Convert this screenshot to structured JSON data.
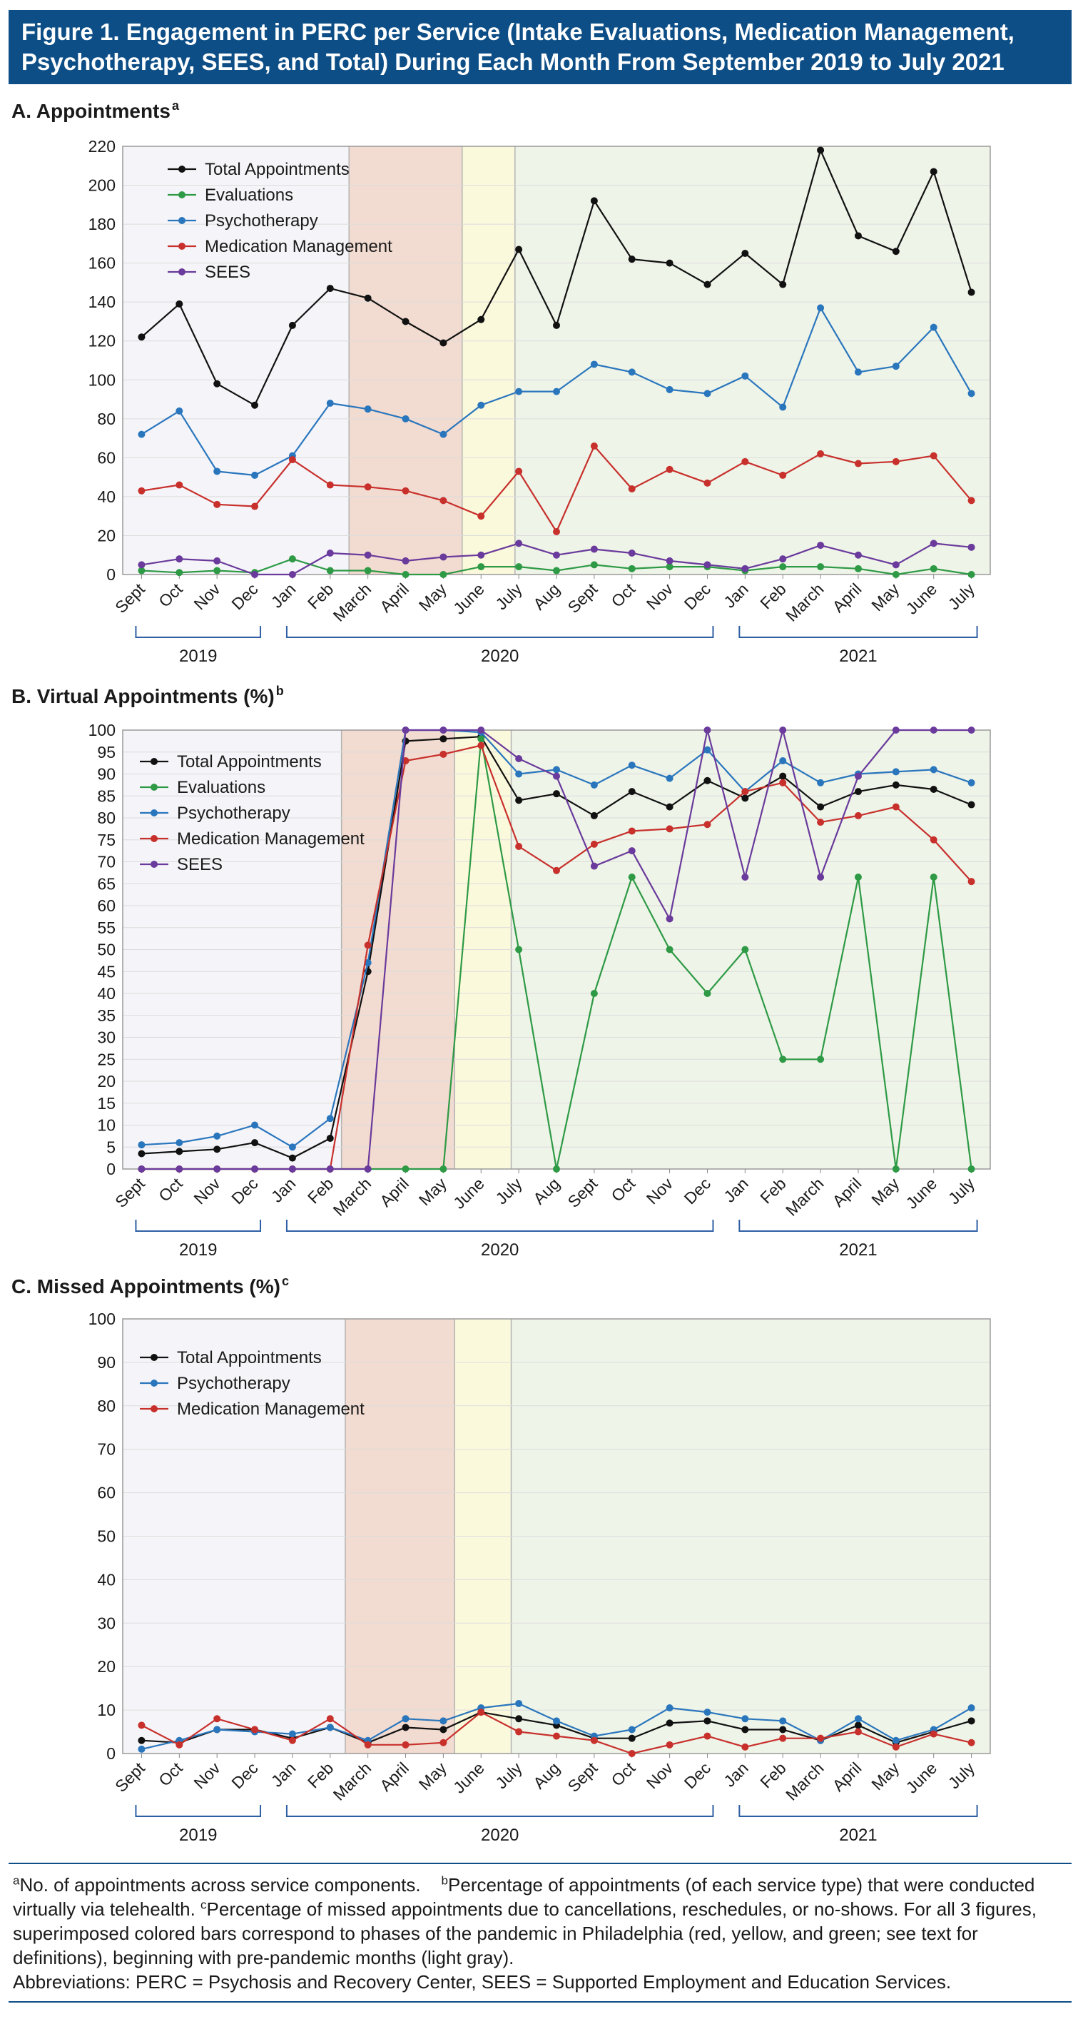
{
  "figure_title": "Figure 1. Engagement in PERC per Service (Intake Evaluations, Medication Management, Psychotherapy, SEES, and Total) During Each Month From September 2019 to July 2021",
  "colors": {
    "banner": "#0d4e86",
    "total": "#111111",
    "evaluations": "#2e9a45",
    "psychotherapy": "#2a76bd",
    "medication": "#c8302c",
    "sees": "#6a3a9c",
    "phase_prepandemic": "#f5f5f9",
    "phase_red": "#f2dbd0",
    "phase_yellow": "#fbf9dc",
    "phase_green": "#eef4e8"
  },
  "footnotes": {
    "a_mark": "a",
    "a_text": "No. of appointments across service components.",
    "b_mark": "b",
    "b_text": "Percentage of appointments (of each service type) that were conducted virtually via telehealth.",
    "c_mark": "c",
    "c_text": "Percentage of missed appointments due to cancellations, reschedules, or no-shows. For all 3 figures, superimposed colored bars correspond to phases of the pandemic in Philadelphia (red, yellow, and green; see text for definitions), beginning with pre-pandemic months (light gray).",
    "abbreviations": "Abbreviations: PERC = Psychosis and Recovery Center, SEES = Supported Employment and Education Services."
  },
  "chart_data": [
    {
      "id": "A",
      "type": "line",
      "title": "A. Appointments",
      "title_sup": "a",
      "x": [
        "Sept",
        "Oct",
        "Nov",
        "Dec",
        "Jan",
        "Feb",
        "March",
        "April",
        "May",
        "June",
        "July",
        "Aug",
        "Sept",
        "Oct",
        "Nov",
        "Dec",
        "Jan",
        "Feb",
        "March",
        "April",
        "May",
        "June",
        "July"
      ],
      "years": [
        {
          "label": "2019",
          "from": 0,
          "to": 3
        },
        {
          "label": "2020",
          "from": 4,
          "to": 15
        },
        {
          "label": "2021",
          "from": 16,
          "to": 22
        }
      ],
      "ylim": [
        0,
        220
      ],
      "yticks": [
        0,
        20,
        40,
        60,
        80,
        100,
        120,
        140,
        160,
        180,
        200,
        220
      ],
      "phases": [
        {
          "name": "pre-pandemic",
          "color": "#f5f5f9",
          "from": -0.5,
          "to": 5.5
        },
        {
          "name": "red",
          "color": "#f2dbd0",
          "from": 5.5,
          "to": 8.5
        },
        {
          "name": "yellow",
          "color": "#fbf9dc",
          "from": 8.5,
          "to": 9.9
        },
        {
          "name": "green",
          "color": "#eef4e8",
          "from": 9.9,
          "to": 22.5
        }
      ],
      "grid": true,
      "legend_position": "top-left",
      "series": [
        {
          "name": "Total Appointments",
          "color": "#111111",
          "values": [
            122,
            139,
            98,
            87,
            128,
            147,
            142,
            130,
            119,
            131,
            167,
            128,
            192,
            162,
            160,
            149,
            165,
            149,
            218,
            174,
            166,
            207,
            145
          ]
        },
        {
          "name": "Evaluations",
          "color": "#2e9a45",
          "values": [
            2,
            1,
            2,
            1,
            8,
            2,
            2,
            0,
            0,
            4,
            4,
            2,
            5,
            3,
            4,
            4,
            2,
            4,
            4,
            3,
            0,
            3,
            0
          ]
        },
        {
          "name": "Psychotherapy",
          "color": "#2a76bd",
          "values": [
            72,
            84,
            53,
            51,
            61,
            88,
            85,
            80,
            72,
            87,
            94,
            94,
            108,
            104,
            95,
            93,
            102,
            86,
            137,
            104,
            107,
            127,
            93
          ]
        },
        {
          "name": "Medication Management",
          "color": "#c8302c",
          "values": [
            43,
            46,
            36,
            35,
            59,
            46,
            45,
            43,
            38,
            30,
            53,
            22,
            66,
            44,
            54,
            47,
            58,
            51,
            62,
            57,
            58,
            61,
            38
          ]
        },
        {
          "name": "SEES",
          "color": "#6a3a9c",
          "values": [
            5,
            8,
            7,
            0,
            0,
            11,
            10,
            7,
            9,
            10,
            16,
            10,
            13,
            11,
            7,
            5,
            3,
            8,
            15,
            10,
            5,
            16,
            14
          ]
        }
      ]
    },
    {
      "id": "B",
      "type": "line",
      "title": "B. Virtual Appointments (%)",
      "title_sup": "b",
      "x": [
        "Sept",
        "Oct",
        "Nov",
        "Dec",
        "Jan",
        "Feb",
        "March",
        "April",
        "May",
        "June",
        "July",
        "Aug",
        "Sept",
        "Oct",
        "Nov",
        "Dec",
        "Jan",
        "Feb",
        "March",
        "April",
        "May",
        "June",
        "July"
      ],
      "years": [
        {
          "label": "2019",
          "from": 0,
          "to": 3
        },
        {
          "label": "2020",
          "from": 4,
          "to": 15
        },
        {
          "label": "2021",
          "from": 16,
          "to": 22
        }
      ],
      "ylim": [
        0,
        100
      ],
      "yticks": [
        0,
        5,
        10,
        15,
        20,
        25,
        30,
        35,
        40,
        45,
        50,
        55,
        60,
        65,
        70,
        75,
        80,
        85,
        90,
        95,
        100
      ],
      "phases": [
        {
          "name": "pre-pandemic",
          "color": "#f5f5f9",
          "from": -0.5,
          "to": 5.3
        },
        {
          "name": "red",
          "color": "#f2dbd0",
          "from": 5.3,
          "to": 8.3
        },
        {
          "name": "yellow",
          "color": "#fbf9dc",
          "from": 8.3,
          "to": 9.8
        },
        {
          "name": "green",
          "color": "#eef4e8",
          "from": 9.8,
          "to": 22.5
        }
      ],
      "grid": true,
      "legend_position": "top-left",
      "series": [
        {
          "name": "Total Appointments",
          "color": "#111111",
          "values": [
            3.5,
            4,
            4.5,
            6,
            2.5,
            7,
            45,
            97.5,
            98,
            98.5,
            84,
            85.5,
            80.5,
            86,
            82.5,
            88.5,
            84.5,
            89.5,
            82.5,
            86,
            87.5,
            86.5,
            83
          ]
        },
        {
          "name": "Evaluations",
          "color": "#2e9a45",
          "values": [
            0,
            0,
            0,
            0,
            0,
            0,
            0,
            0,
            0,
            98,
            50,
            0,
            40,
            66.5,
            50,
            40,
            50,
            25,
            25,
            66.5,
            0,
            66.5,
            0
          ]
        },
        {
          "name": "Psychotherapy",
          "color": "#2a76bd",
          "values": [
            5.5,
            6,
            7.5,
            10,
            5,
            11.5,
            47,
            100,
            100,
            99.5,
            90,
            91,
            87.5,
            92,
            89,
            95.5,
            86,
            93,
            88,
            90,
            90.5,
            91,
            88
          ]
        },
        {
          "name": "Medication Management",
          "color": "#c8302c",
          "values": [
            0,
            0,
            0,
            0,
            0,
            0,
            51,
            93,
            94.5,
            96.5,
            73.5,
            68,
            74,
            77,
            77.5,
            78.5,
            86,
            88,
            79,
            80.5,
            82.5,
            75,
            65.5
          ]
        },
        {
          "name": "SEES",
          "color": "#6a3a9c",
          "values": [
            0,
            0,
            0,
            0,
            0,
            0,
            0,
            100,
            100,
            100,
            93.5,
            89.5,
            69,
            72.5,
            57,
            100,
            66.5,
            100,
            66.5,
            89.5,
            100,
            100,
            100
          ]
        }
      ]
    },
    {
      "id": "C",
      "type": "line",
      "title": "C. Missed Appointments (%)",
      "title_sup": "c",
      "x": [
        "Sept",
        "Oct",
        "Nov",
        "Dec",
        "Jan",
        "Feb",
        "March",
        "April",
        "May",
        "June",
        "July",
        "Aug",
        "Sept",
        "Oct",
        "Nov",
        "Dec",
        "Jan",
        "Feb",
        "March",
        "April",
        "May",
        "June",
        "July"
      ],
      "years": [
        {
          "label": "2019",
          "from": 0,
          "to": 3
        },
        {
          "label": "2020",
          "from": 4,
          "to": 15
        },
        {
          "label": "2021",
          "from": 16,
          "to": 22
        }
      ],
      "ylim": [
        0,
        100
      ],
      "yticks": [
        0,
        10,
        20,
        30,
        40,
        50,
        60,
        70,
        80,
        90,
        100
      ],
      "phases": [
        {
          "name": "pre-pandemic",
          "color": "#f5f5f9",
          "from": -0.5,
          "to": 5.4
        },
        {
          "name": "red",
          "color": "#f2dbd0",
          "from": 5.4,
          "to": 8.3
        },
        {
          "name": "yellow",
          "color": "#fbf9dc",
          "from": 8.3,
          "to": 9.8
        },
        {
          "name": "green",
          "color": "#eef4e8",
          "from": 9.8,
          "to": 22.5
        }
      ],
      "grid": true,
      "legend_position": "top-left",
      "series": [
        {
          "name": "Total Appointments",
          "color": "#111111",
          "values": [
            3,
            2.5,
            5.5,
            5.5,
            3.5,
            6,
            2.5,
            6,
            5.5,
            9.5,
            8,
            6.5,
            3.5,
            3.5,
            7,
            7.5,
            5.5,
            5.5,
            3,
            6.5,
            2.5,
            5,
            7.5
          ]
        },
        {
          "name": "Psychotherapy",
          "color": "#2a76bd",
          "values": [
            1,
            3,
            5.5,
            5,
            4.5,
            6,
            3,
            8,
            7.5,
            10.5,
            11.5,
            7.5,
            4,
            5.5,
            10.5,
            9.5,
            8,
            7.5,
            3,
            8,
            3,
            5.5,
            10.5
          ]
        },
        {
          "name": "Medication Management",
          "color": "#c8302c",
          "values": [
            6.5,
            2,
            8,
            5.5,
            3,
            8,
            2,
            2,
            2.5,
            9.5,
            5,
            4,
            3,
            0,
            2,
            4,
            1.5,
            3.5,
            3.5,
            5,
            1.5,
            4.5,
            2.5
          ]
        }
      ]
    }
  ]
}
